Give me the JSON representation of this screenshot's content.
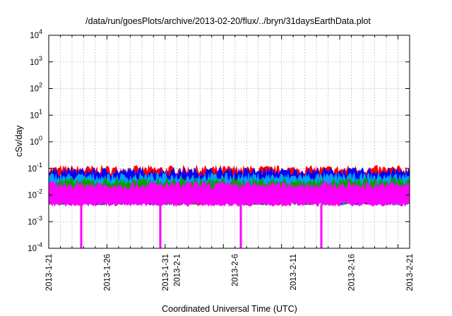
{
  "chart_data": {
    "type": "area",
    "title": "/data/run/goesPlots/archive/2013-02-20/flux/../bryn/31daysEarthData.plot",
    "xlabel": "Coordinated Universal Time (UTC)",
    "ylabel": "cSv/day",
    "y_scale": "log",
    "ylim": [
      0.0001,
      10000
    ],
    "xlim": [
      "2013-01-21",
      "2013-02-21"
    ],
    "grid": true,
    "legend": "none",
    "x_ticks": [
      "2013-1-21",
      "2013-1-26",
      "2013-1-31",
      "2013-2-1",
      "2013-2-6",
      "2013-2-11",
      "2013-2-16",
      "2013-2-21"
    ],
    "y_ticks": [
      {
        "base": "10",
        "exp": "-4"
      },
      {
        "base": "10",
        "exp": "-3"
      },
      {
        "base": "10",
        "exp": "-2"
      },
      {
        "base": "10",
        "exp": "-1"
      },
      {
        "base": "10",
        "exp": "0"
      },
      {
        "base": "10",
        "exp": "1"
      },
      {
        "base": "10",
        "exp": "2"
      },
      {
        "base": "10",
        "exp": "3"
      },
      {
        "base": "10",
        "exp": "4"
      }
    ],
    "series": [
      {
        "color": "#ff0000",
        "typical_upper": 0.085,
        "typical_lower": 0.005
      },
      {
        "color": "#0000ff",
        "typical_upper": 0.07,
        "typical_lower": 0.005
      },
      {
        "color": "#00a0ff",
        "typical_upper": 0.045,
        "typical_lower": 0.005
      },
      {
        "color": "#00a000",
        "typical_upper": 0.03,
        "typical_lower": 0.005
      },
      {
        "color": "#ff00ff",
        "typical_upper": 0.022,
        "typical_lower": 0.0045
      }
    ],
    "dropouts": [
      {
        "date": "2013-01-23T19:00",
        "value": 0.0001
      },
      {
        "date": "2013-01-30T14:00",
        "value": 0.0001
      },
      {
        "date": "2013-02-06T12:00",
        "value": 0.0001
      },
      {
        "date": "2013-02-13T10:00",
        "value": 0.0001
      }
    ]
  }
}
